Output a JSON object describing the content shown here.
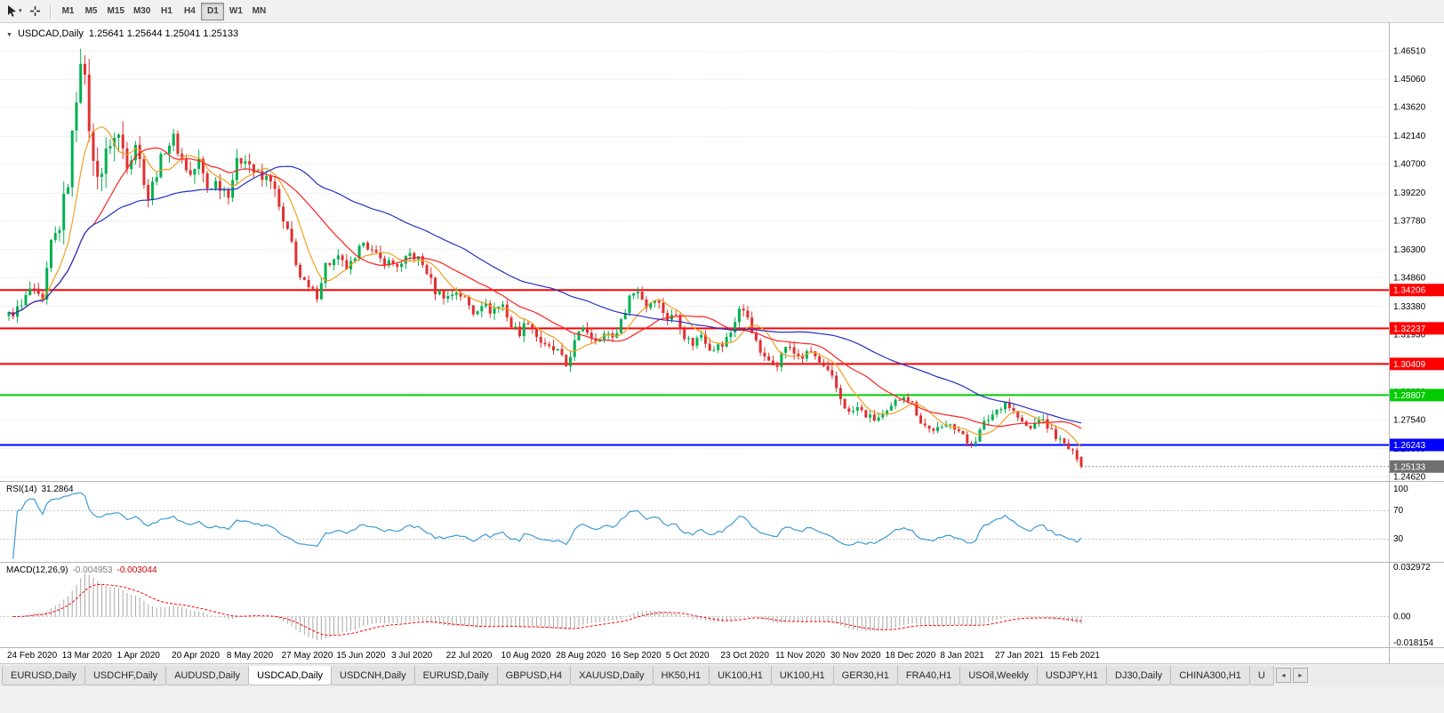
{
  "icons": {
    "symbol_collapse": "▼",
    "caret_down": "▾",
    "tab_scroll_left": "◂",
    "tab_scroll_right": "▸"
  },
  "toolbar": {
    "timeframes": [
      {
        "label": "M1",
        "active": false
      },
      {
        "label": "M5",
        "active": false
      },
      {
        "label": "M15",
        "active": false
      },
      {
        "label": "M30",
        "active": false
      },
      {
        "label": "H1",
        "active": false
      },
      {
        "label": "H4",
        "active": false
      },
      {
        "label": "D1",
        "active": true
      },
      {
        "label": "W1",
        "active": false
      },
      {
        "label": "MN",
        "active": false
      }
    ]
  },
  "chart_header": {
    "symbol": "USDCAD,Daily",
    "ohlc": "1.25641 1.25644 1.25041 1.25133"
  },
  "chart_data": [
    {
      "type": "candlestick",
      "title": "USDCAD,Daily",
      "open": "1.25641",
      "high": "1.25644",
      "low": "1.25041",
      "close": "1.25133",
      "bar_count": 255,
      "bars_per_label": 13,
      "x_labels": [
        "24 Feb 2020",
        "13 Mar 2020",
        "1 Apr 2020",
        "20 Apr 2020",
        "8 May 2020",
        "27 May 2020",
        "15 Jun 2020",
        "3 Jul 2020",
        "22 Jul 2020",
        "10 Aug 2020",
        "28 Aug 2020",
        "16 Sep 2020",
        "5 Oct 2020",
        "23 Oct 2020",
        "11 Nov 2020",
        "30 Nov 2020",
        "18 Dec 2020",
        "8 Jan 2021",
        "27 Jan 2021",
        "15 Feb 2021"
      ],
      "y_ticks": [
        1.4651,
        1.4506,
        1.4362,
        1.4214,
        1.407,
        1.3922,
        1.3778,
        1.363,
        1.3486,
        1.3338,
        1.3193,
        1.3045,
        1.2898,
        1.2754,
        1.2606,
        1.2462
      ],
      "y_range": [
        1.2462,
        1.4651
      ],
      "last_bar": [
        1.25641,
        1.25644,
        1.25041,
        1.25133
      ],
      "close_anchors": [
        [
          0,
          1.329
        ],
        [
          3,
          1.3335
        ],
        [
          5,
          1.3425
        ],
        [
          8,
          1.3355
        ],
        [
          10,
          1.3665
        ],
        [
          12,
          1.3745
        ],
        [
          14,
          1.399
        ],
        [
          16,
          1.442
        ],
        [
          17,
          1.463
        ],
        [
          18,
          1.448
        ],
        [
          20,
          1.406
        ],
        [
          22,
          1.403
        ],
        [
          24,
          1.419
        ],
        [
          26,
          1.421
        ],
        [
          28,
          1.409
        ],
        [
          30,
          1.418
        ],
        [
          33,
          1.3895
        ],
        [
          35,
          1.403
        ],
        [
          37,
          1.415
        ],
        [
          39,
          1.42
        ],
        [
          41,
          1.409
        ],
        [
          43,
          1.401
        ],
        [
          45,
          1.408
        ],
        [
          47,
          1.3945
        ],
        [
          49,
          1.3975
        ],
        [
          52,
          1.3925
        ],
        [
          54,
          1.407
        ],
        [
          56,
          1.411
        ],
        [
          58,
          1.403
        ],
        [
          60,
          1.3985
        ],
        [
          62,
          1.4
        ],
        [
          65,
          1.376
        ],
        [
          67,
          1.366
        ],
        [
          69,
          1.3485
        ],
        [
          71,
          1.3425
        ],
        [
          73,
          1.3395
        ],
        [
          75,
          1.355
        ],
        [
          78,
          1.358
        ],
        [
          80,
          1.3535
        ],
        [
          82,
          1.3565
        ],
        [
          84,
          1.3685
        ],
        [
          86,
          1.3615
        ],
        [
          88,
          1.3575
        ],
        [
          91,
          1.3555
        ],
        [
          93,
          1.3545
        ],
        [
          95,
          1.3605
        ],
        [
          97,
          1.358
        ],
        [
          99,
          1.3515
        ],
        [
          101,
          1.3415
        ],
        [
          104,
          1.3385
        ],
        [
          106,
          1.3415
        ],
        [
          108,
          1.3375
        ],
        [
          110,
          1.3305
        ],
        [
          112,
          1.3355
        ],
        [
          114,
          1.3315
        ],
        [
          117,
          1.3345
        ],
        [
          119,
          1.3235
        ],
        [
          121,
          1.3205
        ],
        [
          123,
          1.3265
        ],
        [
          125,
          1.3185
        ],
        [
          127,
          1.3125
        ],
        [
          130,
          1.3105
        ],
        [
          132,
          1.303
        ],
        [
          134,
          1.315
        ],
        [
          136,
          1.3235
        ],
        [
          138,
          1.3185
        ],
        [
          140,
          1.3165
        ],
        [
          142,
          1.3205
        ],
        [
          143,
          1.3175
        ],
        [
          145,
          1.3255
        ],
        [
          147,
          1.339
        ],
        [
          149,
          1.342
        ],
        [
          151,
          1.3335
        ],
        [
          153,
          1.3385
        ],
        [
          156,
          1.3275
        ],
        [
          158,
          1.3295
        ],
        [
          160,
          1.3185
        ],
        [
          162,
          1.3145
        ],
        [
          164,
          1.3195
        ],
        [
          166,
          1.3125
        ],
        [
          169,
          1.3135
        ],
        [
          171,
          1.3205
        ],
        [
          173,
          1.3325
        ],
        [
          175,
          1.3285
        ],
        [
          177,
          1.3145
        ],
        [
          179,
          1.3065
        ],
        [
          182,
          1.3045
        ],
        [
          184,
          1.3135
        ],
        [
          186,
          1.3095
        ],
        [
          188,
          1.3075
        ],
        [
          190,
          1.3105
        ],
        [
          192,
          1.3045
        ],
        [
          195,
          1.2965
        ],
        [
          197,
          1.2865
        ],
        [
          199,
          1.2785
        ],
        [
          201,
          1.2815
        ],
        [
          203,
          1.2775
        ],
        [
          205,
          1.2755
        ],
        [
          208,
          1.2785
        ],
        [
          210,
          1.2845
        ],
        [
          212,
          1.2885
        ],
        [
          214,
          1.2835
        ],
        [
          216,
          1.2745
        ],
        [
          218,
          1.2705
        ],
        [
          221,
          1.2705
        ],
        [
          223,
          1.2745
        ],
        [
          225,
          1.2695
        ],
        [
          227,
          1.2635
        ],
        [
          229,
          1.2655
        ],
        [
          231,
          1.2735
        ],
        [
          234,
          1.2805
        ],
        [
          236,
          1.2845
        ],
        [
          238,
          1.2795
        ],
        [
          240,
          1.2735
        ],
        [
          242,
          1.2705
        ],
        [
          244,
          1.2765
        ],
        [
          247,
          1.2695
        ],
        [
          249,
          1.2645
        ],
        [
          251,
          1.2605
        ],
        [
          252,
          1.258
        ],
        [
          253,
          1.2565
        ],
        [
          254,
          1.25133
        ]
      ],
      "levels": [
        {
          "price": 1.34206,
          "label": "1.34206",
          "color": "#ff0000"
        },
        {
          "price": 1.32237,
          "label": "1.32237",
          "color": "#ff0000"
        },
        {
          "price": 1.30409,
          "label": "1.30409",
          "color": "#ff0000"
        },
        {
          "price": 1.28807,
          "label": "1.28807",
          "color": "#00cc00"
        },
        {
          "price": 1.26243,
          "label": "1.26243",
          "color": "#0000ff"
        }
      ],
      "current_price": {
        "value": 1.25133,
        "label": "1.25133",
        "color": "#707070"
      },
      "moving_averages": [
        {
          "period": 8,
          "color": "#f0a020"
        },
        {
          "period": 21,
          "color": "#ff2020"
        },
        {
          "period": 55,
          "color": "#2431c4"
        }
      ],
      "up_color": "#00b050",
      "down_color": "#e03030"
    },
    {
      "type": "line",
      "name": "RSI",
      "label_name": "RSI(14)",
      "label_value": "31.2864",
      "period": 14,
      "current_value": 31.2864,
      "range": [
        0,
        100
      ],
      "level_lines": [
        70,
        30
      ],
      "scale_labels": [
        "100",
        "70",
        "30"
      ],
      "color": "#3d9bd4"
    },
    {
      "type": "bar",
      "name": "MACD",
      "label_name": "MACD(12,26,9)",
      "main_value": "-0.004953",
      "signal_value": "-0.003044",
      "fast": 12,
      "slow": 26,
      "signal": 9,
      "range": [
        -0.018154,
        0.032972
      ],
      "scale_labels": [
        "0.032972",
        "0.00",
        "-0.018154"
      ],
      "histogram_color": "#a8a8a8",
      "signal_color": "#ff0000"
    }
  ],
  "tabbar": {
    "tabs": [
      {
        "label": "EURUSD,Daily",
        "active": false
      },
      {
        "label": "USDCHF,Daily",
        "active": false
      },
      {
        "label": "AUDUSD,Daily",
        "active": false
      },
      {
        "label": "USDCAD,Daily",
        "active": true
      },
      {
        "label": "USDCNH,Daily",
        "active": false
      },
      {
        "label": "EURUSD,Daily",
        "active": false
      },
      {
        "label": "GBPUSD,H4",
        "active": false
      },
      {
        "label": "XAUUSD,Daily",
        "active": false
      },
      {
        "label": "HK50,H1",
        "active": false
      },
      {
        "label": "UK100,H1",
        "active": false
      },
      {
        "label": "UK100,H1",
        "active": false
      },
      {
        "label": "GER30,H1",
        "active": false
      },
      {
        "label": "FRA40,H1",
        "active": false
      },
      {
        "label": "USOil,Weekly",
        "active": false
      },
      {
        "label": "USDJPY,H1",
        "active": false
      },
      {
        "label": "DJ30,Daily",
        "active": false
      },
      {
        "label": "CHINA300,H1",
        "active": false
      },
      {
        "label": "U",
        "active": false
      }
    ]
  }
}
